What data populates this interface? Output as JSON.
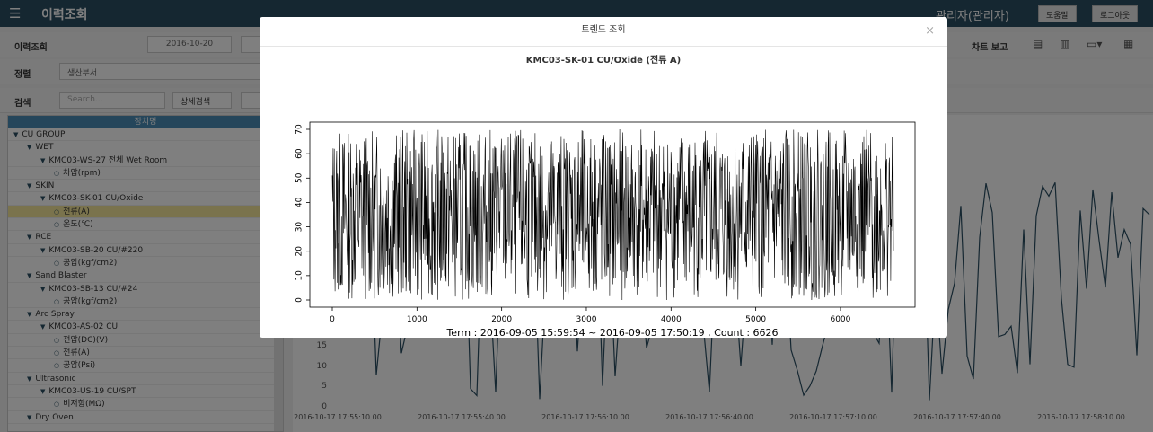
{
  "topbar": {
    "title": "이력조회",
    "user": "관리자(관리자)",
    "help": "도움말",
    "logout": "로그아웃"
  },
  "filter": {
    "history_label": "이력조회",
    "date_from": "2016-10-20",
    "sort_label": "정렬",
    "sort_value": "생산부서",
    "search_label": "검색",
    "search_placeholder": "Search...",
    "detail_search": "상세검색"
  },
  "toolbar": {
    "chart_report": "차트 보고"
  },
  "tree": {
    "header": "장치명",
    "nodes": [
      {
        "label": "CU GROUP",
        "level": 0,
        "type": "group"
      },
      {
        "label": "WET",
        "level": 1,
        "type": "group"
      },
      {
        "label": "KMC03-WS-27 전체 Wet Room",
        "level": 2,
        "type": "group"
      },
      {
        "label": "차압(rpm)",
        "level": 3,
        "type": "leaf"
      },
      {
        "label": "SKIN",
        "level": 1,
        "type": "group"
      },
      {
        "label": "KMC03-SK-01 CU/Oxide",
        "level": 2,
        "type": "group"
      },
      {
        "label": "전류(A)",
        "level": 3,
        "type": "leaf",
        "selected": true
      },
      {
        "label": "온도(℃)",
        "level": 3,
        "type": "leaf"
      },
      {
        "label": "RCE",
        "level": 1,
        "type": "group"
      },
      {
        "label": "KMC03-SB-20 CU/#220",
        "level": 2,
        "type": "group"
      },
      {
        "label": "공압(kgf/cm2)",
        "level": 3,
        "type": "leaf"
      },
      {
        "label": "Sand Blaster",
        "level": 1,
        "type": "group"
      },
      {
        "label": "KMC03-SB-13 CU/#24",
        "level": 2,
        "type": "group"
      },
      {
        "label": "공압(kgf/cm2)",
        "level": 3,
        "type": "leaf"
      },
      {
        "label": "Arc Spray",
        "level": 1,
        "type": "group"
      },
      {
        "label": "KMC03-AS-02 CU",
        "level": 2,
        "type": "group"
      },
      {
        "label": "전압(DC)(V)",
        "level": 3,
        "type": "leaf"
      },
      {
        "label": "전류(A)",
        "level": 3,
        "type": "leaf"
      },
      {
        "label": "공압(Psi)",
        "level": 3,
        "type": "leaf"
      },
      {
        "label": "Ultrasonic",
        "level": 1,
        "type": "group"
      },
      {
        "label": "KMC03-US-19 CU/SPT",
        "level": 2,
        "type": "group"
      },
      {
        "label": "비저항(MΩ)",
        "level": 3,
        "type": "leaf"
      },
      {
        "label": "Dry Oven",
        "level": 1,
        "type": "group"
      }
    ]
  },
  "bg_chart": {
    "y_ticks": [
      "15",
      "10",
      "5",
      "0"
    ],
    "x_ticks": [
      "2016-10-17 17:55:10.00",
      "2016-10-17 17:55:40.00",
      "2016-10-17 17:56:10.00",
      "2016-10-17 17:56:40.00",
      "2016-10-17 17:57:10.00",
      "2016-10-17 17:57:40.00",
      "2016-10-17 17:58:10.00"
    ],
    "line_color": "#2b4e63"
  },
  "modal": {
    "title": "트렌드 조회",
    "close_glyph": "×",
    "chart_data": {
      "type": "line",
      "title": "KMC03-SK-01 CU/Oxide (전류 A)",
      "footer": "Term : 2016-09-05 15:59:54  ~  2016-09-05 17:50:19 ,  Count : 6626",
      "xlim": [
        0,
        6626
      ],
      "ylim": [
        0,
        70
      ],
      "x_ticks": [
        0,
        1000,
        2000,
        3000,
        4000,
        5000,
        6000
      ],
      "y_ticks": [
        0,
        10,
        20,
        30,
        40,
        50,
        60,
        70
      ],
      "count": 6626,
      "value_range": [
        0,
        70
      ],
      "line_color": "#000000"
    }
  }
}
